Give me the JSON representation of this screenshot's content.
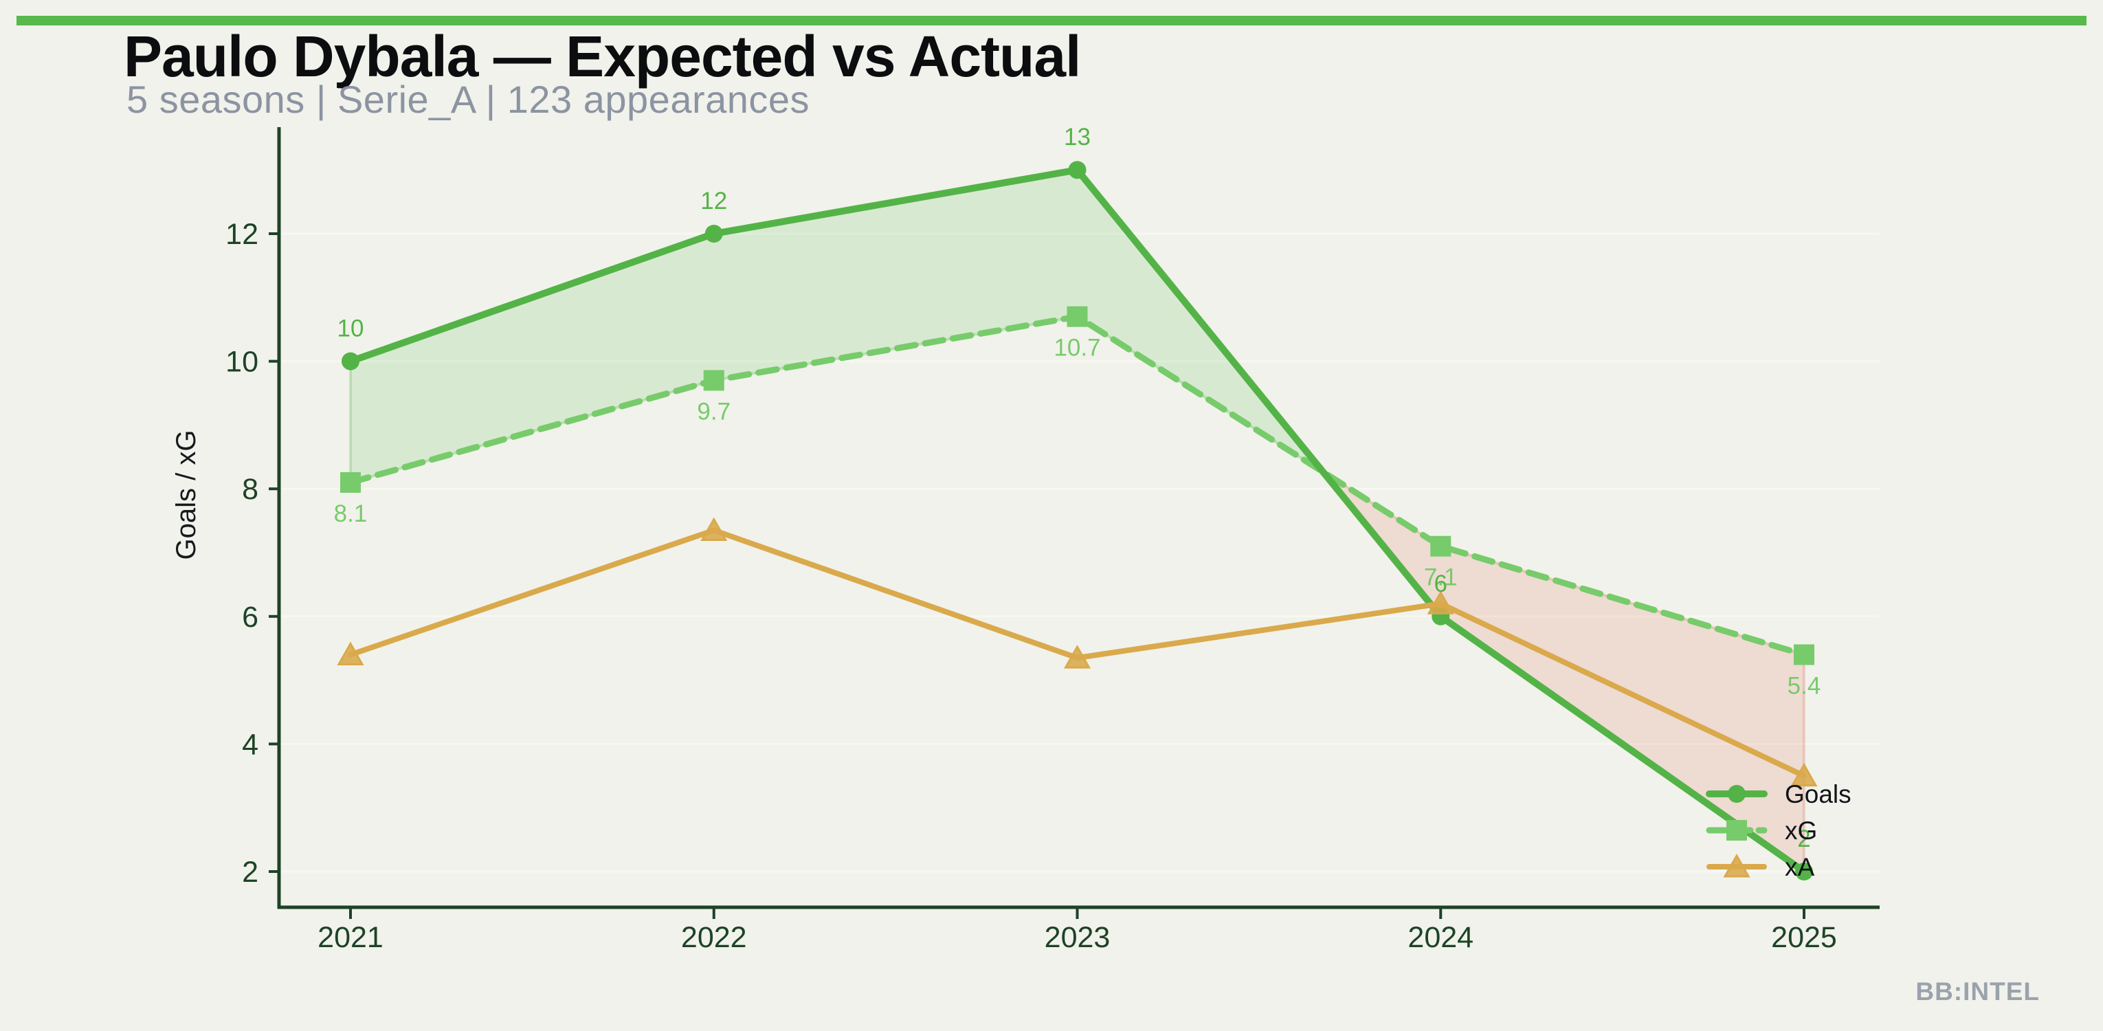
{
  "page": {
    "background": "#f1f2eb",
    "accent_bar_color": "#57b84b"
  },
  "header": {
    "title": "Paulo Dybala — Expected vs Actual",
    "subtitle": "5 seasons | Serie_A | 123 appearances"
  },
  "footer": {
    "watermark": "BB:INTEL"
  },
  "chart_data": {
    "type": "line",
    "title": "Paulo Dybala — Expected vs Actual",
    "subtitle": "5 seasons | Serie_A | 123 appearances",
    "categories": [
      "2021",
      "2022",
      "2023",
      "2024",
      "2025"
    ],
    "series": [
      {
        "name": "Goals",
        "values": [
          10,
          12,
          13,
          6,
          2
        ],
        "labels": [
          "10",
          "12",
          "13",
          "6",
          "2"
        ],
        "color": "#53b347",
        "marker": "circle",
        "line_style": "solid"
      },
      {
        "name": "xG",
        "values": [
          8.1,
          9.7,
          10.7,
          7.1,
          5.4
        ],
        "labels": [
          "8.1",
          "9.7",
          "10.7",
          "7.1",
          "5.4"
        ],
        "color": "#77cb6b",
        "marker": "square",
        "line_style": "dashed"
      },
      {
        "name": "xA",
        "values": [
          5.4,
          7.35,
          5.35,
          6.2,
          3.5
        ],
        "labels": [],
        "color": "#d9a94b",
        "marker": "triangle",
        "line_style": "solid"
      }
    ],
    "xlabel": "",
    "ylabel": "Goals / xG",
    "yticks": [
      2,
      4,
      6,
      8,
      10,
      12
    ],
    "ylim": [
      0.9,
      13.6
    ],
    "grid": "horizontal-faint",
    "legend": {
      "position": "lower-right",
      "entries": [
        "Goals",
        "xG",
        "xA"
      ],
      "text_color": "#111418"
    },
    "style": {
      "axis_color": "#1d4326",
      "gridline_color": "#f7f8f1",
      "ylabel_color": "#16191d",
      "fill_above_color": "rgba(87,184,75,0.16)",
      "fill_above_edge": "rgba(87,184,75,0.28)",
      "fill_below_color": "rgba(224,86,70,0.15)",
      "fill_below_edge": "rgba(224,86,70,0.22)",
      "fill_above_meaning": "Goals above xG (overperformance)",
      "fill_below_meaning": "xG above Goals (underperformance)"
    }
  }
}
